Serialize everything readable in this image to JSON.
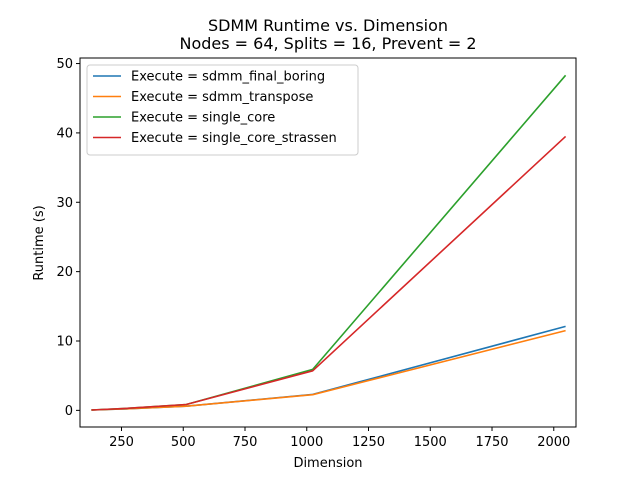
{
  "chart_data": {
    "type": "line",
    "title": "SDMM Runtime vs. Dimension",
    "subtitle": "Nodes = 64, Splits = 16, Prevent = 2",
    "xlabel": "Dimension",
    "ylabel": "Runtime (s)",
    "xlim": [
      82,
      2090
    ],
    "ylim": [
      -2.4,
      50.8
    ],
    "xticks": [
      250,
      500,
      750,
      1000,
      1250,
      1500,
      1750,
      2000
    ],
    "yticks": [
      0,
      10,
      20,
      30,
      40,
      50
    ],
    "grid": false,
    "legend_position": "top-left",
    "x": [
      128,
      256,
      512,
      1024,
      2048
    ],
    "series": [
      {
        "name": "Execute = sdmm_final_boring",
        "color": "#1f77b4",
        "values": [
          0.05,
          0.2,
          0.6,
          2.3,
          12.1
        ]
      },
      {
        "name": "Execute = sdmm_transpose",
        "color": "#ff7f0e",
        "values": [
          0.05,
          0.2,
          0.6,
          2.25,
          11.5
        ]
      },
      {
        "name": "Execute = single_core",
        "color": "#2ca02c",
        "values": [
          0.05,
          0.25,
          0.85,
          5.9,
          48.3
        ]
      },
      {
        "name": "Execute = single_core_strassen",
        "color": "#d62728",
        "values": [
          0.05,
          0.25,
          0.85,
          5.7,
          39.5
        ]
      }
    ]
  }
}
